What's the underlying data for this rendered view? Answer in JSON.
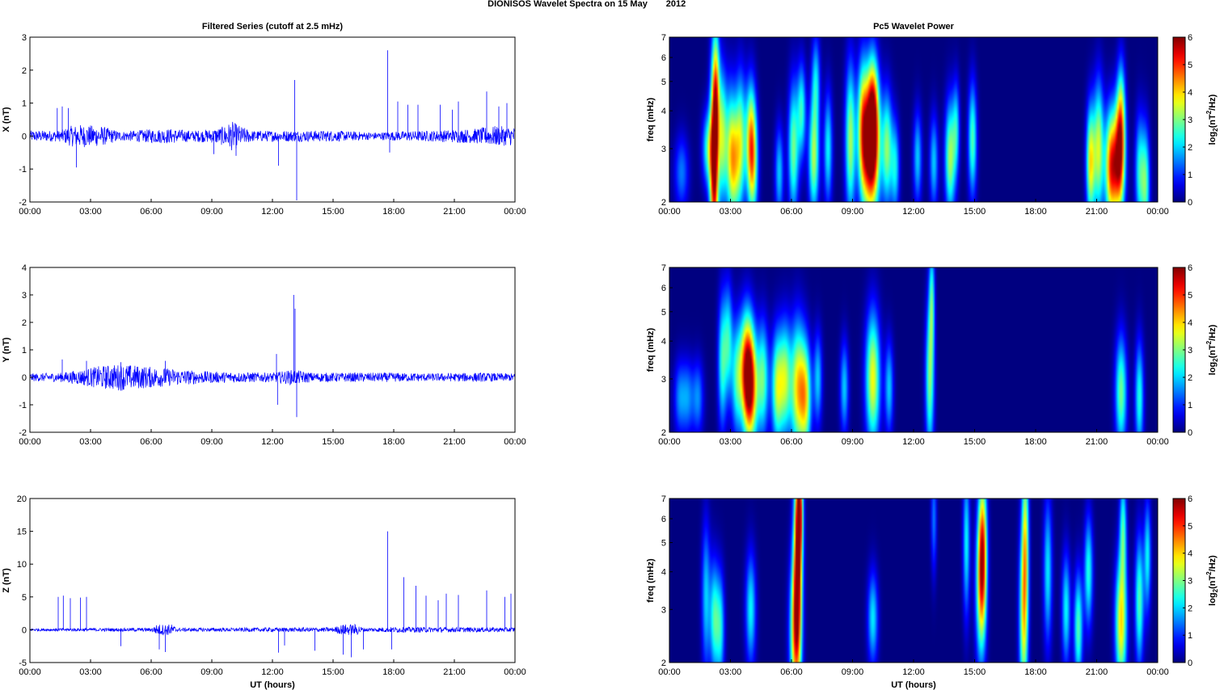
{
  "figure": {
    "title": "DIONISOS Wavelet Spectra on 15 May",
    "year": "2012",
    "left_column_title": "Filtered Series (cutoff at 2.5 mHz)",
    "right_column_title": "Pc5 Wavelet Power",
    "x_label": "UT (hours)"
  },
  "chart_data": [
    {
      "type": "line",
      "component": "X",
      "ylabel": "X (nT)",
      "x_range_hours": [
        0,
        24
      ],
      "xticks": [
        "00:00",
        "03:00",
        "06:00",
        "09:00",
        "12:00",
        "15:00",
        "18:00",
        "21:00",
        "00:00"
      ],
      "ylim": [
        -2,
        3
      ],
      "yticks": [
        "-2",
        "-1",
        "0",
        "1",
        "2",
        "3"
      ],
      "noise_envelope": [
        [
          0,
          0.12
        ],
        [
          1.5,
          0.12
        ],
        [
          2,
          0.22
        ],
        [
          2.5,
          0.25
        ],
        [
          3.5,
          0.22
        ],
        [
          4.5,
          0.1
        ],
        [
          6,
          0.15
        ],
        [
          7,
          0.16
        ],
        [
          8,
          0.12
        ],
        [
          9,
          0.15
        ],
        [
          9.5,
          0.2
        ],
        [
          10,
          0.32
        ],
        [
          10.5,
          0.2
        ],
        [
          11,
          0.12
        ],
        [
          13,
          0.12
        ],
        [
          15,
          0.12
        ],
        [
          17,
          0.08
        ],
        [
          18,
          0.1
        ],
        [
          20,
          0.12
        ],
        [
          22,
          0.16
        ],
        [
          23,
          0.22
        ],
        [
          24,
          0.2
        ]
      ],
      "spikes": [
        [
          1.35,
          0.85
        ],
        [
          1.6,
          0.9
        ],
        [
          1.9,
          0.85
        ],
        [
          2.3,
          -0.95
        ],
        [
          9.1,
          -0.55
        ],
        [
          10.2,
          -0.6
        ],
        [
          12.3,
          -0.9
        ],
        [
          13.1,
          1.7
        ],
        [
          13.2,
          -1.95
        ],
        [
          17.7,
          2.6
        ],
        [
          17.8,
          -0.5
        ],
        [
          18.2,
          1.05
        ],
        [
          18.7,
          0.95
        ],
        [
          19.2,
          0.95
        ],
        [
          20.3,
          0.95
        ],
        [
          20.9,
          0.8
        ],
        [
          21.2,
          1.05
        ],
        [
          22.6,
          1.35
        ],
        [
          23.2,
          0.9
        ],
        [
          23.6,
          1.0
        ]
      ],
      "series": [
        {
          "color": "#0000ff"
        }
      ]
    },
    {
      "type": "line",
      "component": "Y",
      "ylabel": "Y (nT)",
      "x_range_hours": [
        0,
        24
      ],
      "xticks": [
        "00:00",
        "03:00",
        "06:00",
        "09:00",
        "12:00",
        "15:00",
        "18:00",
        "21:00",
        "00:00"
      ],
      "ylim": [
        -2,
        4
      ],
      "yticks": [
        "-2",
        "-1",
        "0",
        "1",
        "2",
        "3",
        "4"
      ],
      "noise_envelope": [
        [
          0,
          0.1
        ],
        [
          1.5,
          0.12
        ],
        [
          2.5,
          0.2
        ],
        [
          3.5,
          0.3
        ],
        [
          4.5,
          0.35
        ],
        [
          5.5,
          0.3
        ],
        [
          6.5,
          0.25
        ],
        [
          7.5,
          0.2
        ],
        [
          9,
          0.15
        ],
        [
          12,
          0.12
        ],
        [
          13,
          0.2
        ],
        [
          14,
          0.12
        ],
        [
          16,
          0.12
        ],
        [
          18,
          0.12
        ],
        [
          20,
          0.1
        ],
        [
          22,
          0.12
        ],
        [
          24,
          0.1
        ]
      ],
      "spikes": [
        [
          1.6,
          0.65
        ],
        [
          2.8,
          0.6
        ],
        [
          4.5,
          0.55
        ],
        [
          6.7,
          0.6
        ],
        [
          12.2,
          0.85
        ],
        [
          12.25,
          -1.0
        ],
        [
          13.05,
          3.0
        ],
        [
          13.12,
          2.5
        ],
        [
          13.2,
          -1.45
        ]
      ],
      "series": [
        {
          "color": "#0000ff"
        }
      ]
    },
    {
      "type": "line",
      "component": "Z",
      "ylabel": "Z (nT)",
      "x_range_hours": [
        0,
        24
      ],
      "xticks": [
        "00:00",
        "03:00",
        "06:00",
        "09:00",
        "12:00",
        "15:00",
        "18:00",
        "21:00",
        "00:00"
      ],
      "ylim": [
        -5,
        20
      ],
      "yticks": [
        "-5",
        "0",
        "5",
        "10",
        "15",
        "20"
      ],
      "noise_envelope": [
        [
          0,
          0.15
        ],
        [
          6,
          0.2
        ],
        [
          6.3,
          0.6
        ],
        [
          7,
          0.6
        ],
        [
          7.3,
          0.2
        ],
        [
          15,
          0.25
        ],
        [
          15.5,
          0.6
        ],
        [
          16.2,
          0.6
        ],
        [
          16.5,
          0.2
        ],
        [
          18,
          0.3
        ],
        [
          24,
          0.25
        ]
      ],
      "spikes": [
        [
          1.4,
          5.0
        ],
        [
          1.65,
          5.2
        ],
        [
          2.0,
          4.8
        ],
        [
          2.5,
          4.9
        ],
        [
          2.8,
          5.0
        ],
        [
          4.5,
          -2.5
        ],
        [
          6.4,
          -3.0
        ],
        [
          6.7,
          -3.4
        ],
        [
          12.3,
          -3.5
        ],
        [
          12.6,
          -2.4
        ],
        [
          14.1,
          -3.2
        ],
        [
          15.5,
          -3.8
        ],
        [
          15.9,
          -4.2
        ],
        [
          16.5,
          -3.0
        ],
        [
          17.7,
          15.0
        ],
        [
          17.9,
          -3.0
        ],
        [
          18.5,
          8.0
        ],
        [
          19.1,
          6.7
        ],
        [
          19.6,
          5.2
        ],
        [
          20.2,
          4.5
        ],
        [
          20.6,
          5.5
        ],
        [
          21.2,
          5.3
        ],
        [
          22.6,
          6.0
        ],
        [
          23.5,
          5.0
        ],
        [
          23.8,
          5.5
        ]
      ],
      "series": [
        {
          "color": "#0000ff"
        }
      ]
    },
    {
      "type": "heatmap",
      "component": "X",
      "ylabel": "freq (mHz)",
      "yscale": "log",
      "ylim": [
        2,
        7
      ],
      "yticks": [
        "2",
        "3",
        "4",
        "5",
        "6",
        "7"
      ],
      "x_range_hours": [
        0,
        24
      ],
      "xticks": [
        "00:00",
        "03:00",
        "06:00",
        "09:00",
        "12:00",
        "15:00",
        "18:00",
        "21:00",
        "00:00"
      ],
      "colorbar": {
        "label": "log2(nT^2/Hz)",
        "range": [
          0,
          6
        ],
        "ticks": [
          "0",
          "1",
          "2",
          "3",
          "4",
          "5",
          "6"
        ]
      },
      "blobs": [
        [
          0.6,
          2.5,
          1.5,
          0.25,
          0.2
        ],
        [
          1.9,
          3.0,
          2.5,
          0.2,
          0.2
        ],
        [
          2.2,
          2.6,
          5.8,
          0.15,
          0.55
        ],
        [
          2.3,
          4.5,
          3.0,
          0.12,
          0.35
        ],
        [
          2.6,
          3.3,
          3.0,
          0.15,
          0.35
        ],
        [
          3.0,
          3.0,
          2.7,
          0.2,
          0.35
        ],
        [
          3.2,
          2.6,
          2.3,
          0.2,
          0.3
        ],
        [
          3.5,
          3.2,
          3.0,
          0.18,
          0.35
        ],
        [
          4.0,
          3.3,
          3.2,
          0.18,
          0.3
        ],
        [
          4.1,
          2.6,
          2.8,
          0.18,
          0.3
        ],
        [
          5.4,
          2.5,
          2.0,
          0.15,
          0.25
        ],
        [
          6.1,
          3.0,
          3.0,
          0.18,
          0.35
        ],
        [
          6.5,
          4.0,
          2.5,
          0.15,
          0.25
        ],
        [
          7.1,
          2.8,
          3.3,
          0.18,
          0.3
        ],
        [
          7.2,
          5.0,
          2.0,
          0.15,
          0.25
        ],
        [
          7.8,
          3.0,
          2.3,
          0.15,
          0.3
        ],
        [
          8.9,
          3.2,
          3.3,
          0.18,
          0.4
        ],
        [
          9.5,
          3.6,
          3.5,
          0.18,
          0.35
        ],
        [
          9.9,
          2.9,
          5.8,
          0.3,
          0.35
        ],
        [
          10.0,
          4.0,
          4.0,
          0.2,
          0.3
        ],
        [
          10.7,
          3.0,
          3.0,
          0.18,
          0.3
        ],
        [
          11.1,
          2.6,
          2.2,
          0.15,
          0.25
        ],
        [
          12.2,
          2.8,
          2.0,
          0.15,
          0.25
        ],
        [
          13.0,
          2.7,
          2.0,
          0.15,
          0.25
        ],
        [
          13.8,
          2.8,
          3.3,
          0.18,
          0.3
        ],
        [
          14.1,
          3.5,
          2.0,
          0.12,
          0.25
        ],
        [
          14.9,
          3.2,
          2.8,
          0.15,
          0.3
        ],
        [
          20.7,
          2.7,
          3.8,
          0.15,
          0.3
        ],
        [
          21.1,
          3.0,
          3.5,
          0.18,
          0.35
        ],
        [
          21.7,
          2.6,
          4.8,
          0.2,
          0.3
        ],
        [
          22.1,
          2.7,
          4.8,
          0.2,
          0.3
        ],
        [
          22.2,
          3.8,
          3.0,
          0.15,
          0.3
        ],
        [
          23.1,
          2.5,
          2.3,
          0.15,
          0.3
        ],
        [
          23.4,
          2.3,
          2.8,
          0.15,
          0.3
        ]
      ],
      "colormap": "jet"
    },
    {
      "type": "heatmap",
      "component": "Y",
      "ylabel": "freq (mHz)",
      "yscale": "log",
      "ylim": [
        2,
        7
      ],
      "yticks": [
        "2",
        "3",
        "4",
        "5",
        "6",
        "7"
      ],
      "x_range_hours": [
        0,
        24
      ],
      "xticks": [
        "00:00",
        "03:00",
        "06:00",
        "09:00",
        "12:00",
        "15:00",
        "18:00",
        "21:00",
        "00:00"
      ],
      "colorbar": {
        "label": "log2(nT^2/Hz)",
        "range": [
          0,
          6
        ],
        "ticks": [
          "0",
          "1",
          "2",
          "3",
          "4",
          "5",
          "6"
        ]
      },
      "blobs": [
        [
          0.5,
          2.6,
          1.5,
          0.2,
          0.2
        ],
        [
          0.9,
          2.6,
          1.5,
          0.2,
          0.2
        ],
        [
          1.4,
          2.6,
          1.6,
          0.2,
          0.2
        ],
        [
          2.6,
          3.4,
          2.5,
          0.15,
          0.35
        ],
        [
          2.9,
          4.0,
          2.3,
          0.15,
          0.3
        ],
        [
          3.3,
          3.0,
          2.3,
          0.18,
          0.3
        ],
        [
          3.8,
          3.3,
          4.5,
          0.25,
          0.3
        ],
        [
          4.0,
          2.7,
          4.0,
          0.25,
          0.3
        ],
        [
          4.6,
          3.0,
          2.8,
          0.2,
          0.3
        ],
        [
          5.3,
          2.8,
          3.3,
          0.2,
          0.3
        ],
        [
          5.7,
          3.0,
          3.0,
          0.2,
          0.3
        ],
        [
          6.3,
          2.8,
          3.8,
          0.25,
          0.35
        ],
        [
          6.7,
          2.6,
          3.3,
          0.2,
          0.3
        ],
        [
          7.3,
          3.0,
          2.0,
          0.15,
          0.25
        ],
        [
          8.6,
          2.8,
          2.0,
          0.15,
          0.25
        ],
        [
          10.0,
          3.0,
          3.8,
          0.25,
          0.35
        ],
        [
          10.8,
          2.8,
          2.0,
          0.15,
          0.25
        ],
        [
          12.8,
          3.0,
          3.0,
          0.15,
          0.4
        ],
        [
          12.9,
          5.5,
          2.3,
          0.1,
          0.3
        ],
        [
          22.2,
          2.7,
          3.0,
          0.2,
          0.3
        ],
        [
          23.1,
          2.6,
          2.5,
          0.15,
          0.3
        ]
      ],
      "colormap": "jet"
    },
    {
      "type": "heatmap",
      "component": "Z",
      "ylabel": "freq (mHz)",
      "yscale": "log",
      "ylim": [
        2,
        7
      ],
      "yticks": [
        "2",
        "3",
        "4",
        "5",
        "6",
        "7"
      ],
      "x_range_hours": [
        0,
        24
      ],
      "xticks": [
        "00:00",
        "03:00",
        "06:00",
        "09:00",
        "12:00",
        "15:00",
        "18:00",
        "21:00",
        "00:00"
      ],
      "colorbar": {
        "label": "log2(nT^2/Hz)",
        "range": [
          0,
          6
        ],
        "ticks": [
          "0",
          "1",
          "2",
          "3",
          "4",
          "5",
          "6"
        ]
      },
      "blobs": [
        [
          1.8,
          3.3,
          2.0,
          0.15,
          0.4
        ],
        [
          2.2,
          2.8,
          2.5,
          0.15,
          0.3
        ],
        [
          2.5,
          2.6,
          2.3,
          0.15,
          0.3
        ],
        [
          4.0,
          3.0,
          2.3,
          0.18,
          0.3
        ],
        [
          6.2,
          2.5,
          4.0,
          0.2,
          0.4
        ],
        [
          6.3,
          4.2,
          4.5,
          0.15,
          0.5
        ],
        [
          6.4,
          6.5,
          4.5,
          0.12,
          0.3
        ],
        [
          10.0,
          2.8,
          2.2,
          0.18,
          0.25
        ],
        [
          13.0,
          6.0,
          1.5,
          0.1,
          0.3
        ],
        [
          14.6,
          5.0,
          2.3,
          0.12,
          0.4
        ],
        [
          15.3,
          3.5,
          3.0,
          0.18,
          0.4
        ],
        [
          15.4,
          4.8,
          4.2,
          0.15,
          0.4
        ],
        [
          17.4,
          2.8,
          3.3,
          0.15,
          0.5
        ],
        [
          17.5,
          5.2,
          3.0,
          0.12,
          0.5
        ],
        [
          18.6,
          4.0,
          2.2,
          0.15,
          0.4
        ],
        [
          19.5,
          3.0,
          2.3,
          0.15,
          0.3
        ],
        [
          20.1,
          2.6,
          2.8,
          0.15,
          0.3
        ],
        [
          20.6,
          4.0,
          2.5,
          0.15,
          0.3
        ],
        [
          22.2,
          2.7,
          4.0,
          0.2,
          0.35
        ],
        [
          22.3,
          5.5,
          2.5,
          0.12,
          0.3
        ],
        [
          23.1,
          3.2,
          2.8,
          0.15,
          0.35
        ],
        [
          23.5,
          4.5,
          2.3,
          0.12,
          0.3
        ]
      ],
      "colormap": "jet"
    }
  ]
}
